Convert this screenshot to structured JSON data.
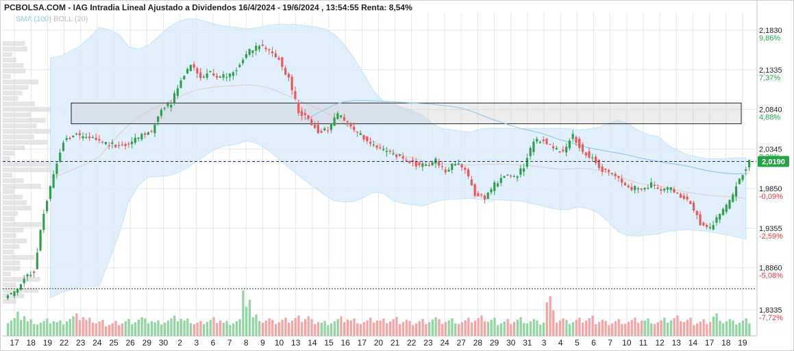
{
  "header": {
    "title": "PCBOLSA.COM - IAG Intradia Lineal Ajustado a Dividendos 16/4/2024 - 19/6/2024 , 13:54:55 Renta: 8,54%"
  },
  "legend": {
    "sma": "SMA (100)",
    "boll": "BOLL (20)"
  },
  "colors": {
    "up": "#2e9e4f",
    "down": "#ef5656",
    "vol_up": "#8fd6a0",
    "vol_down": "#f7a3a3",
    "band_fill": "#dcedfa",
    "sma": "#8ec9ef",
    "ref_line": "#1f2a8c",
    "grid": "#e6e6e6",
    "price_badge": "#23a447"
  },
  "chart_data": {
    "type": "candlestick",
    "title": "IAG Intradia Lineal Ajustado a Dividendos 16/4/2024 - 19/6/2024",
    "ylim": [
      1.83,
      2.19
    ],
    "y_ticks": [
      {
        "price": 2.183,
        "price_label": "2,1830",
        "pct_label": "9,86%",
        "sign": "pos"
      },
      {
        "price": 2.1335,
        "price_label": "2,1335",
        "pct_label": "7,37%",
        "sign": "pos"
      },
      {
        "price": 2.084,
        "price_label": "2,0840",
        "pct_label": "4,88%",
        "sign": "pos"
      },
      {
        "price": 2.0345,
        "price_label": "2,0345",
        "pct_label": "2,39%",
        "sign": "pos"
      },
      {
        "price": 1.985,
        "price_label": "1,9850",
        "pct_label": "-0,09%",
        "sign": "neg"
      },
      {
        "price": 1.9355,
        "price_label": "1,9355",
        "pct_label": "-2,59%",
        "sign": "neg"
      },
      {
        "price": 1.886,
        "price_label": "1,8860",
        "pct_label": "-5,08%",
        "sign": "neg"
      },
      {
        "price": 1.8335,
        "price_label": "1,8335",
        "pct_label": "-7,72%",
        "sign": "neg"
      }
    ],
    "x_labels": [
      "17",
      "18",
      "19",
      "22",
      "23",
      "24",
      "25",
      "26",
      "29",
      "30",
      "2",
      "3",
      "6",
      "7",
      "8",
      "9",
      "10",
      "13",
      "14",
      "15",
      "16",
      "17",
      "20",
      "21",
      "22",
      "23",
      "24",
      "27",
      "28",
      "29",
      "30",
      "31",
      "3",
      "4",
      "5",
      "6",
      "7",
      "10",
      "11",
      "12",
      "13",
      "14",
      "17",
      "18",
      "19"
    ],
    "current_price": {
      "value": 2.019,
      "label": "2,0190"
    },
    "zone": {
      "low": 2.066,
      "high": 2.092
    },
    "reference_line": 1.86,
    "closes": [
      1.855,
      1.875,
      1.882,
      1.955,
      2.002,
      2.044,
      2.052,
      2.05,
      2.048,
      2.042,
      2.04,
      2.038,
      2.043,
      2.052,
      2.057,
      2.083,
      2.092,
      2.122,
      2.14,
      2.124,
      2.13,
      2.125,
      2.127,
      2.14,
      2.157,
      2.164,
      2.157,
      2.147,
      2.122,
      2.082,
      2.072,
      2.057,
      2.06,
      2.077,
      2.068,
      2.054,
      2.046,
      2.034,
      2.033,
      2.027,
      2.022,
      2.015,
      2.013,
      2.02,
      2.006,
      2.017,
      2.01,
      1.978,
      1.972,
      1.99,
      2.002,
      1.998,
      2.012,
      2.044,
      2.047,
      2.036,
      2.03,
      2.052,
      2.032,
      2.023,
      2.008,
      2.003,
      1.992,
      1.986,
      1.984,
      1.99,
      1.982,
      1.986,
      1.975,
      1.968,
      1.942,
      1.935,
      1.953,
      1.968,
      1.998,
      2.019
    ],
    "volume_bars": [
      0.35,
      0.5,
      0.3,
      0.25,
      0.3,
      0.25,
      0.35,
      0.4,
      0.3,
      0.25,
      0.2,
      0.25,
      0.3,
      0.35,
      0.3,
      0.25,
      0.3,
      0.35,
      0.28,
      0.22,
      0.3,
      0.35,
      0.25,
      0.3,
      1.0,
      0.4,
      0.3,
      0.25,
      0.3,
      0.35,
      0.4,
      0.3,
      0.25,
      0.3,
      0.35,
      0.3,
      0.25,
      0.3,
      0.28,
      0.32,
      0.3,
      0.25,
      0.3,
      0.35,
      0.28,
      0.3,
      0.25,
      0.3,
      0.35,
      0.3,
      0.25,
      0.3,
      0.35,
      0.3,
      0.25,
      0.85,
      0.3,
      0.25,
      0.3,
      0.35,
      0.3,
      0.25,
      0.3,
      0.28,
      0.32,
      0.3,
      0.25,
      0.3,
      0.35,
      0.3,
      0.25,
      0.3,
      0.45,
      0.3,
      0.25,
      0.3
    ]
  }
}
